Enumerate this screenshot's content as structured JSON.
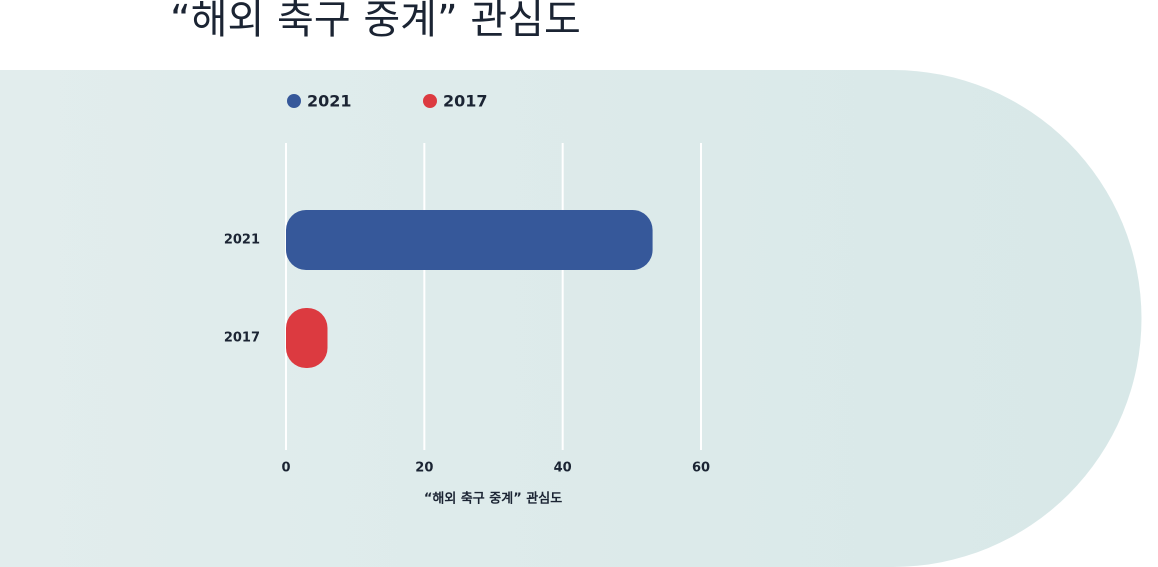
{
  "chart_data": {
    "type": "bar",
    "orientation": "horizontal",
    "title": "“해외 축구 중계” 관심도",
    "x_label": "“해외 축구 중계” 관심도",
    "categories": [
      "2021",
      "2017"
    ],
    "series": [
      {
        "name": "2021",
        "color": "#36589a",
        "values": [
          53,
          null
        ]
      },
      {
        "name": "2017",
        "color": "#dc3a40",
        "values": [
          null,
          6
        ]
      }
    ],
    "xlim": [
      0,
      60
    ],
    "xticks": [
      0,
      20,
      40,
      60
    ],
    "grid": true,
    "legend": "top"
  }
}
